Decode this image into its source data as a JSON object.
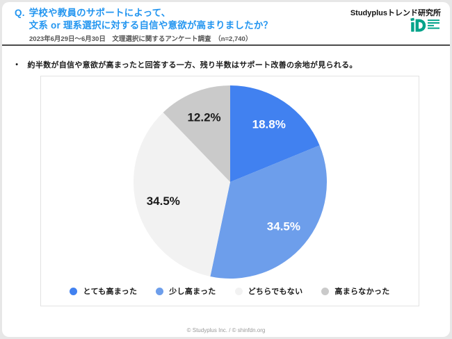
{
  "header": {
    "q_prefix": "Q.",
    "title_line1": "学校や教員のサポートによって、",
    "title_line2": "文系 or 理系選択に対する自信や意欲が高まりましたか？",
    "subtitle": "2023年6月29日～6月30日　文理選択に関するアンケート調査　（n=2,740）",
    "brand": "Studyplusトレンド研究所"
  },
  "summary": {
    "bullet": "●",
    "text": "約半数が自信や意欲が高まったと回答する一方、残り半数はサポート改善の余地が見られる。"
  },
  "chart_data": {
    "type": "pie",
    "title": "",
    "labels": [
      "とても高まった",
      "少し高まった",
      "どちらでもない",
      "高まらなかった"
    ],
    "values": [
      18.8,
      34.5,
      34.5,
      12.2
    ],
    "data_labels": [
      "18.8%",
      "34.5%",
      "34.5%",
      "12.2%"
    ],
    "colors": [
      "#4181F0",
      "#6D9EEB",
      "#F2F2F2",
      "#CACACA"
    ],
    "label_colors": [
      "#FFFFFF",
      "#FFFFFF",
      "#1a1a1a",
      "#1a1a1a"
    ],
    "unit": "%",
    "start_angle_deg": 0,
    "direction": "clockwise",
    "legend_position": "bottom"
  },
  "footer": {
    "text": "© Studyplus Inc.  /  © shinfdn.org"
  },
  "colors": {
    "title_blue": "#2496f0",
    "logo_teal": "#00A38A",
    "divider": "#4a4a4a"
  }
}
